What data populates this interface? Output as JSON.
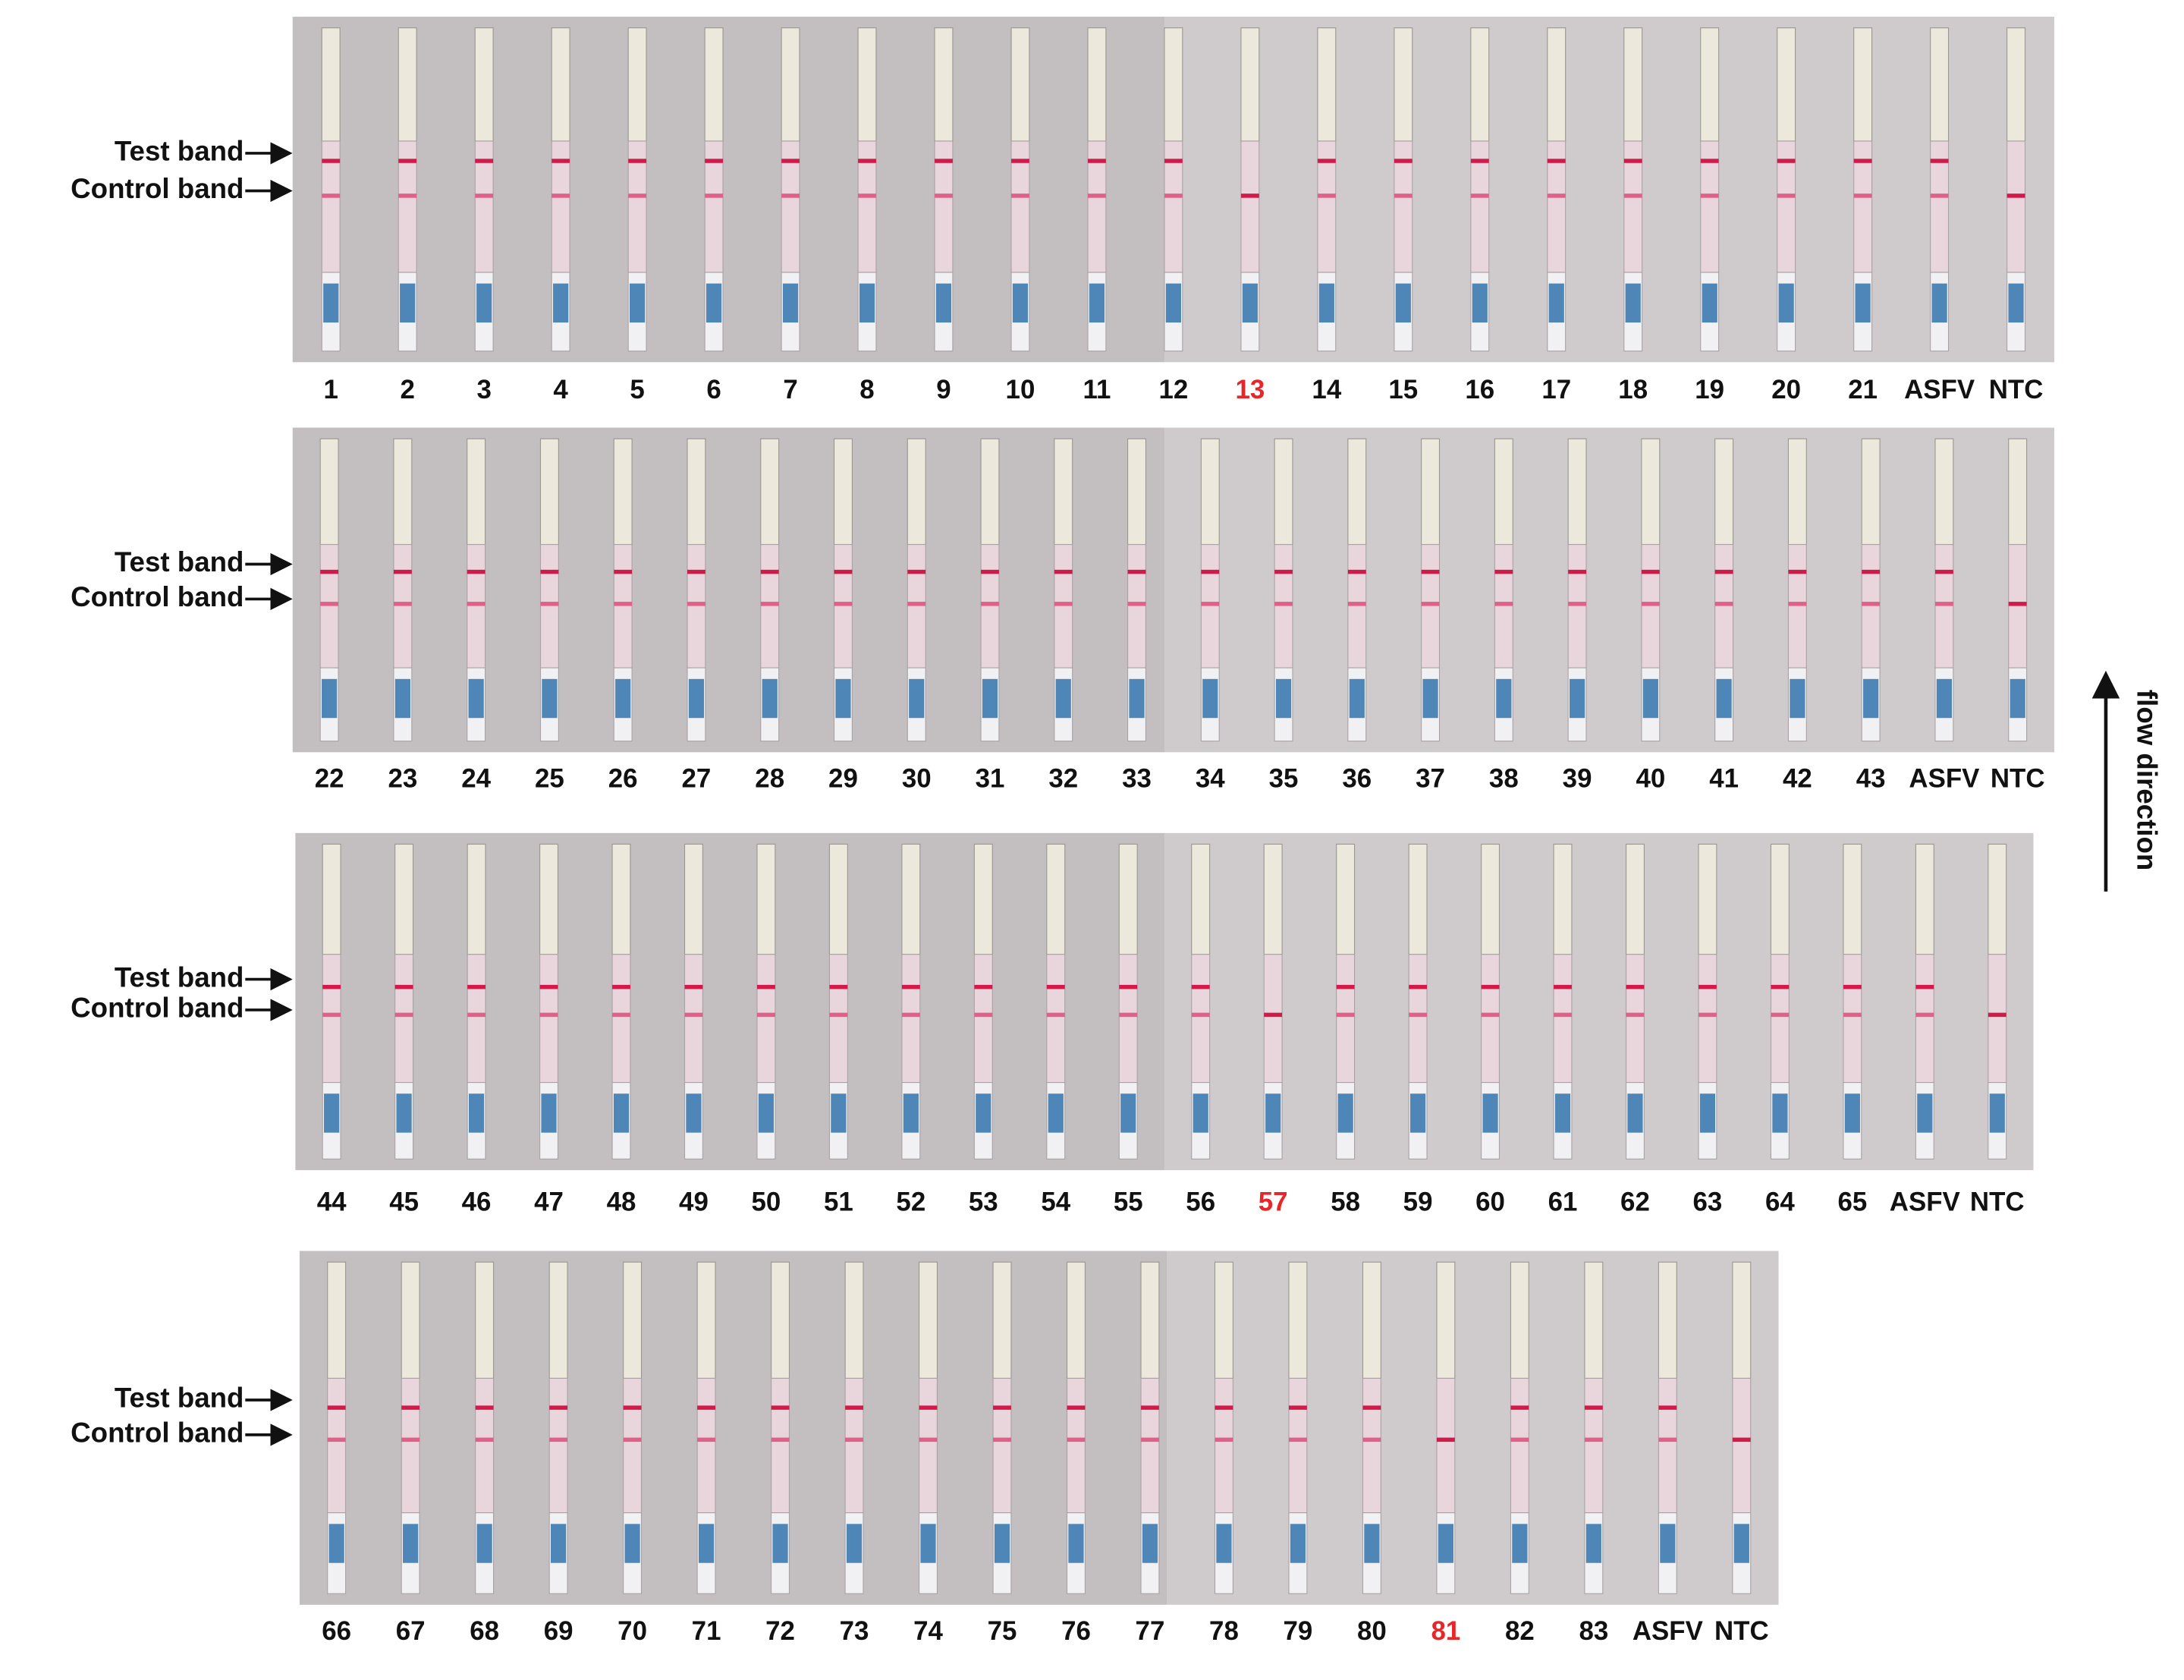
{
  "panels": [
    {
      "test_label": "Test band",
      "control_label": "Control band",
      "labels": [
        "1",
        "2",
        "3",
        "4",
        "5",
        "6",
        "7",
        "8",
        "9",
        "10",
        "11",
        "12",
        "13",
        "14",
        "15",
        "16",
        "17",
        "18",
        "19",
        "20",
        "21",
        "ASFV",
        "NTC"
      ],
      "highlighted": [
        12
      ]
    },
    {
      "test_label": "Test band",
      "control_label": "Control band",
      "labels": [
        "22",
        "23",
        "24",
        "25",
        "26",
        "27",
        "28",
        "29",
        "30",
        "31",
        "32",
        "33",
        "34",
        "35",
        "36",
        "37",
        "38",
        "39",
        "40",
        "41",
        "42",
        "43",
        "ASFV",
        "NTC"
      ],
      "highlighted": []
    },
    {
      "test_label": "Test band",
      "control_label": "Control band",
      "labels": [
        "44",
        "45",
        "46",
        "47",
        "48",
        "49",
        "50",
        "51",
        "52",
        "53",
        "54",
        "55",
        "56",
        "57",
        "58",
        "59",
        "60",
        "61",
        "62",
        "63",
        "64",
        "65",
        "ASFV",
        "NTC"
      ],
      "highlighted": [
        13
      ]
    },
    {
      "test_label": "Test band",
      "control_label": "Control band",
      "labels": [
        "66",
        "67",
        "68",
        "69",
        "70",
        "71",
        "72",
        "73",
        "74",
        "75",
        "76",
        "77",
        "78",
        "79",
        "80",
        "81",
        "82",
        "83",
        "ASFV",
        "NTC"
      ],
      "highlighted": [
        15
      ]
    }
  ],
  "flow_label": "flow direction",
  "highlight_color": "#e8262a"
}
